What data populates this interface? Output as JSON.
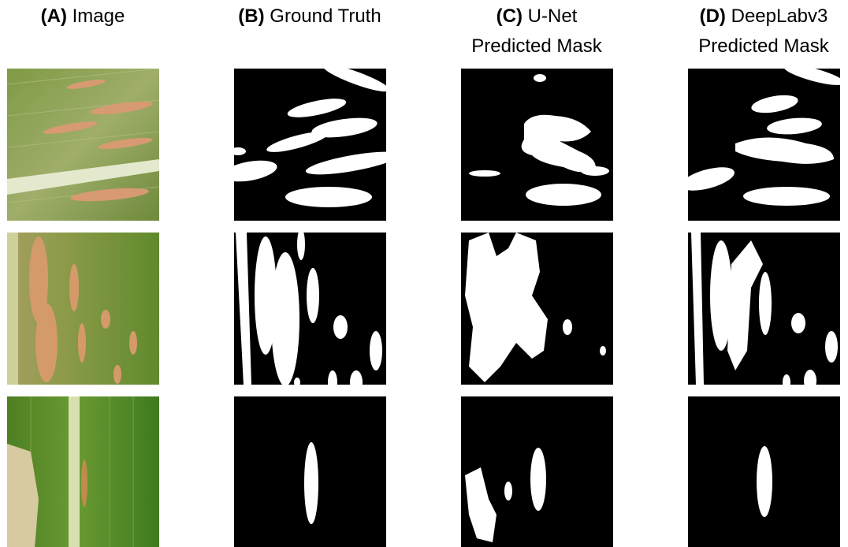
{
  "columns": [
    {
      "label": "(A)",
      "title": "Image"
    },
    {
      "label": "(B)",
      "title": "Ground Truth"
    },
    {
      "label": "(C)",
      "title": "U-Net",
      "subtitle": "Predicted Mask"
    },
    {
      "label": "(D)",
      "title": "DeepLabv3",
      "subtitle": "Predicted Mask"
    }
  ]
}
